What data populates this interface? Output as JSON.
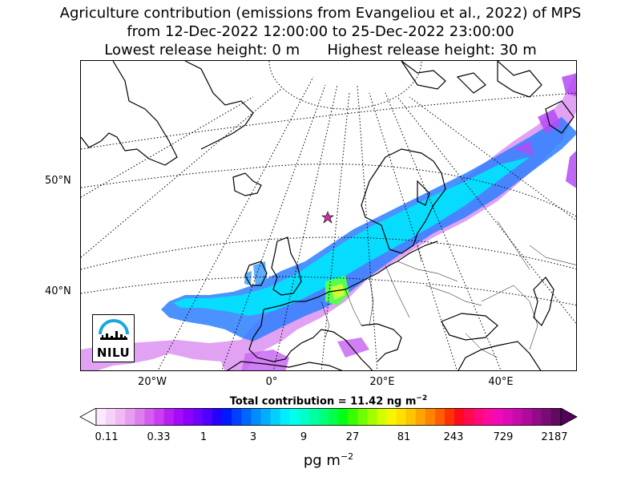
{
  "title": {
    "line1": "Agriculture contribution (emissions from Evangeliou et al., 2022) of MPS",
    "line2": "from 12-Dec-2022 12:00:00 to 25-Dec-2022 23:00:00",
    "line3": "Lowest release height: 0 m      Highest release height: 30 m"
  },
  "map": {
    "lat_labels": [
      "50°N",
      "40°N"
    ],
    "lon_labels": [
      "20°W",
      "0°",
      "20°E",
      "40°E"
    ],
    "gridlines": "dotted",
    "background": "#ffffff",
    "coastline_color": "#000000",
    "plume_colors": [
      "#cc00ff",
      "#3399ff",
      "#00e5ff",
      "#00ffcc",
      "#66ff33",
      "#ccff00"
    ],
    "marker_icon": "star-marker-icon",
    "marker_color": "#cc3399"
  },
  "total_contribution": {
    "label": "Total contribution = 11.42 ng m",
    "exponent": "−2"
  },
  "colorbar": {
    "tick_labels": [
      "0.11",
      "0.33",
      "1",
      "3",
      "9",
      "27",
      "81",
      "243",
      "729",
      "2187"
    ],
    "unit_base": "pg m",
    "unit_exponent": "−2",
    "extend": "both",
    "colors": [
      "#fbe8fb",
      "#f6d2f8",
      "#efbaf5",
      "#e79ef2",
      "#de7ff0",
      "#d45cf0",
      "#c93ef2",
      "#b91ff5",
      "#a40bf7",
      "#8c00fa",
      "#6f00fc",
      "#4d00ff",
      "#2600ff",
      "#0019ff",
      "#0040ff",
      "#0066ff",
      "#008cff",
      "#00adff",
      "#00cfff",
      "#00edff",
      "#00ffec",
      "#00ffc8",
      "#00ffa2",
      "#00ff7a",
      "#00ff4a",
      "#00ff14",
      "#38ff00",
      "#6eff00",
      "#a2ff00",
      "#d2ff00",
      "#f8f500",
      "#ffe000",
      "#ffc300",
      "#ffa500",
      "#ff8500",
      "#ff5f00",
      "#ff3300",
      "#ff0a1e",
      "#ff0a4d",
      "#ff0a7a",
      "#ff0aa1",
      "#f20ab8",
      "#dd0ab8",
      "#c70aab",
      "#b00a9c",
      "#940a88",
      "#7a0a74",
      "#600a60"
    ],
    "under_color": "#ffffff",
    "over_color": "#55005a"
  },
  "logo": {
    "text": "NILU",
    "icon": "nilu-logo-icon",
    "arc_color": "#1aa8e0"
  }
}
